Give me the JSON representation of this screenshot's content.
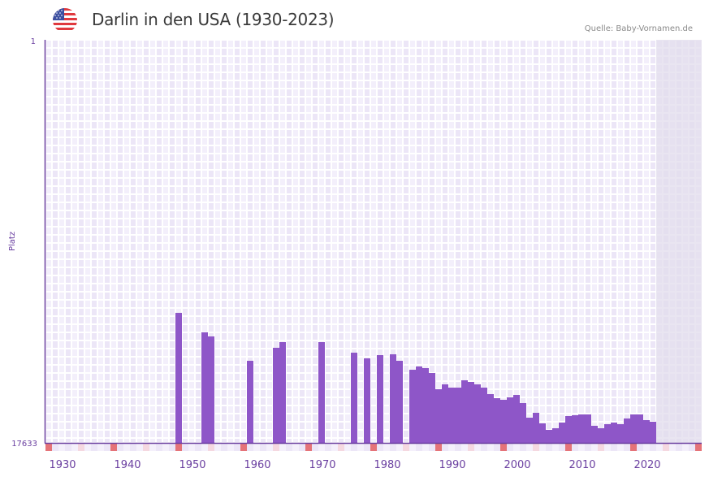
{
  "header": {
    "title": "Darlin in den USA (1930-2023)",
    "source": "Quelle: Baby-Vornamen.de",
    "flag_icon": "us-flag-icon"
  },
  "colors": {
    "bar": "#8e56c8",
    "axis": "#6a3fa0",
    "grid_cell_a": "#f3effb",
    "grid_cell_b": "#ece6f7",
    "future_shade": "#e2dcec",
    "decade_marker": "#e57378",
    "half_decade_marker": "#f5d8e0"
  },
  "chart_data": {
    "type": "bar",
    "title": "Darlin in den USA (1930-2023)",
    "xlabel": "",
    "ylabel": "Platz",
    "y_inverted": true,
    "ylim": [
      1,
      17633
    ],
    "y_tick_labels": [
      "1",
      "17633"
    ],
    "xlim": [
      1928,
      2028
    ],
    "x_tick_labels": [
      "1930",
      "1940",
      "1950",
      "1960",
      "1970",
      "1980",
      "1990",
      "2000",
      "2010",
      "2020"
    ],
    "shaded_from_year": 2022,
    "grid": true,
    "legend": "none",
    "series": [
      {
        "name": "Platz",
        "x": [
          1948,
          1952,
          1953,
          1959,
          1963,
          1964,
          1970,
          1975,
          1977,
          1979,
          1981,
          1982,
          1984,
          1985,
          1986,
          1987,
          1988,
          1989,
          1990,
          1991,
          1992,
          1993,
          1994,
          1995,
          1996,
          1997,
          1998,
          1999,
          2000,
          2001,
          2002,
          2003,
          2004,
          2005,
          2006,
          2007,
          2008,
          2009,
          2010,
          2011,
          2012,
          2013,
          2014,
          2015,
          2016,
          2017,
          2018,
          2019,
          2020,
          2021
        ],
        "values": [
          11945,
          12798,
          12976,
          14042,
          13474,
          13225,
          13225,
          13687,
          13936,
          13794,
          13758,
          14042,
          14434,
          14291,
          14362,
          14576,
          15287,
          15074,
          15216,
          15216,
          14896,
          14967,
          15074,
          15216,
          15500,
          15678,
          15749,
          15642,
          15536,
          15891,
          16531,
          16318,
          16780,
          17064,
          16993,
          16744,
          16460,
          16424,
          16389,
          16389,
          16886,
          16993,
          16815,
          16744,
          16815,
          16566,
          16389,
          16389,
          16638,
          16709
        ]
      }
    ]
  }
}
